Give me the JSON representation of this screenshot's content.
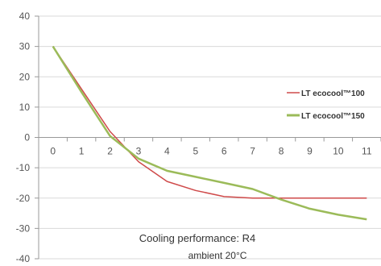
{
  "chart_data": {
    "type": "line",
    "title": "",
    "xlabel": "",
    "ylabel": "",
    "x": [
      0,
      1,
      2,
      3,
      4,
      5,
      6,
      7,
      8,
      9,
      10,
      11
    ],
    "xlim": [
      -0.5,
      11.5
    ],
    "ylim": [
      -40,
      40
    ],
    "y_ticks": [
      "40",
      "30",
      "20",
      "10",
      "0",
      "-10",
      "-20",
      "-30",
      "-40"
    ],
    "x_ticks": [
      "0",
      "1",
      "2",
      "3",
      "4",
      "5",
      "6",
      "7",
      "8",
      "9",
      "10",
      "11"
    ],
    "grid": "horizontal",
    "legend_position": "right",
    "series": [
      {
        "name": "LT ecocool™100",
        "color": "#cf4a4a",
        "x": [
          0,
          1,
          2,
          3,
          4,
          5,
          6,
          7,
          8,
          9,
          10,
          11
        ],
        "values": [
          30,
          16,
          2,
          -8,
          -14.5,
          -17.5,
          -19.5,
          -20,
          -20,
          -20,
          -20,
          -20
        ]
      },
      {
        "name": "LT ecocool™150",
        "color": "#9bbb59",
        "x": [
          0,
          1,
          2,
          3,
          4,
          5,
          6,
          7,
          8,
          9,
          10,
          11
        ],
        "values": [
          30,
          15,
          0.5,
          -7,
          -11,
          -13,
          -15,
          -17,
          -20.5,
          -23.5,
          -25.5,
          -27
        ]
      }
    ],
    "annotations": [
      "Cooling performance: R4",
      "ambient 20°C"
    ]
  }
}
